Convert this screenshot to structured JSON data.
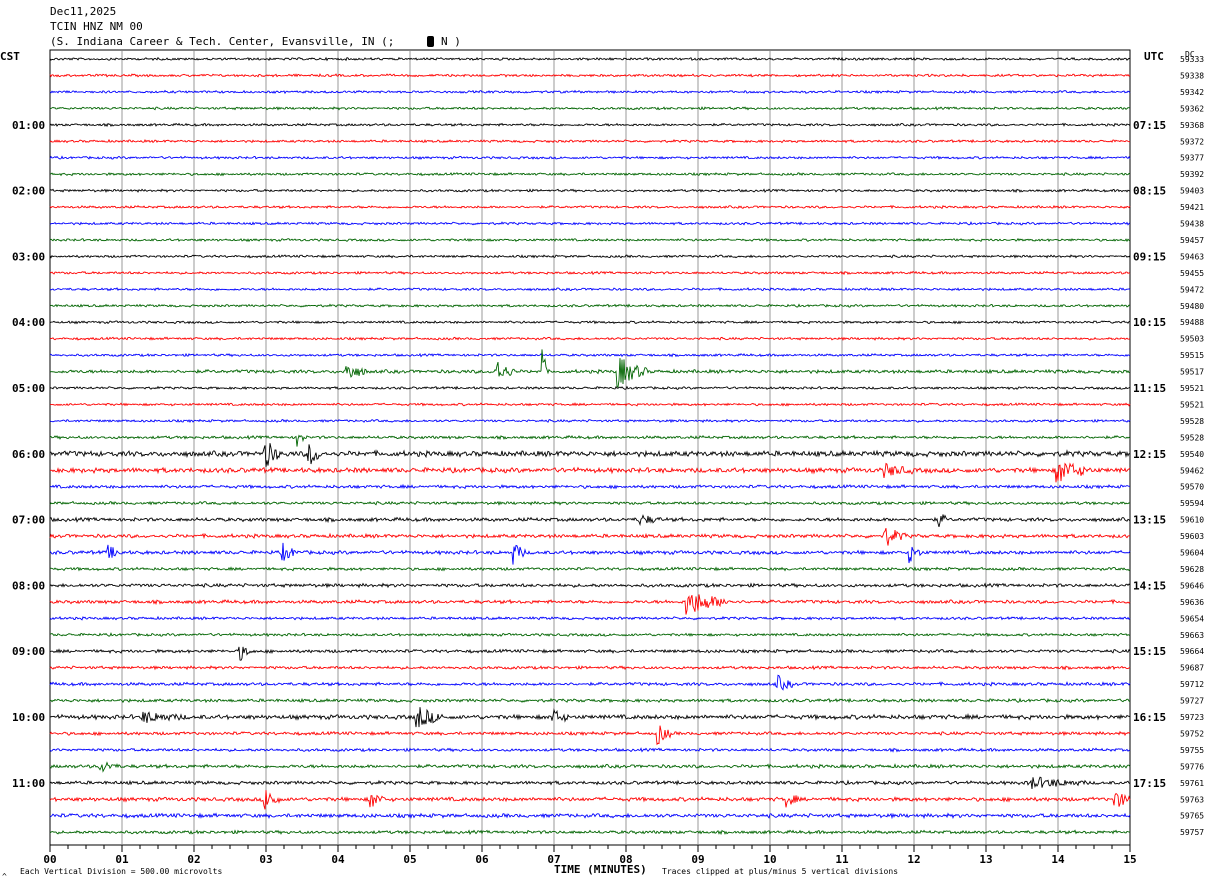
{
  "header": {
    "date": "Dec11,2025",
    "station": "TCIN HNZ NM 00",
    "location_prefix": "(S. Indiana Career & Tech. Center, Evansville, IN (;",
    "location_suffix": "N  )"
  },
  "labels": {
    "left_timezone": "CST",
    "right_timezone": "UTC",
    "dc_label": "DC",
    "x_axis_title": "TIME (MINUTES)",
    "scale_note": "Each Vertical Division =  500.00 microvolts",
    "clip_note": "Traces clipped at plus/minus 5 vertical divisions",
    "corner_mark": "^"
  },
  "colors": {
    "trace_cycle": [
      "#000000",
      "#ff0000",
      "#0000ff",
      "#006400"
    ],
    "grid": "#808080"
  },
  "chart_data": {
    "type": "line",
    "x_range": [
      0,
      15
    ],
    "x_tick_labels": [
      "00",
      "01",
      "02",
      "03",
      "04",
      "05",
      "06",
      "07",
      "08",
      "09",
      "10",
      "11",
      "12",
      "13",
      "14",
      "15"
    ],
    "cst_hour_labels": [
      "01:00",
      "02:00",
      "03:00",
      "04:00",
      "05:00",
      "06:00",
      "07:00",
      "08:00",
      "09:00",
      "10:00",
      "11:00"
    ],
    "utc_hour_labels": [
      "07:15",
      "08:15",
      "09:15",
      "10:15",
      "11:15",
      "12:15",
      "13:15",
      "14:15",
      "15:15",
      "16:15",
      "17:15"
    ],
    "hour_label_rows": [
      4,
      8,
      12,
      16,
      20,
      24,
      28,
      32,
      36,
      40,
      44
    ],
    "trace_count": 48,
    "dc_offsets": [
      "59333",
      "59338",
      "59342",
      "59362",
      "59368",
      "59372",
      "59377",
      "59392",
      "59403",
      "59421",
      "59438",
      "59457",
      "59463",
      "59455",
      "59472",
      "59480",
      "59488",
      "59503",
      "59515",
      "59517",
      "59521",
      "59521",
      "59528",
      "59528",
      "59540",
      "59462",
      "59570",
      "59594",
      "59610",
      "59603",
      "59604",
      "59628",
      "59646",
      "59636",
      "59654",
      "59663",
      "59664",
      "59687",
      "59712",
      "59727",
      "59723",
      "59752",
      "59755",
      "59776",
      "59761",
      "59763",
      "59765",
      "59757"
    ],
    "noise_levels": [
      1,
      1,
      1,
      1,
      1,
      1,
      1,
      1,
      1,
      1,
      1,
      1,
      1,
      1,
      1,
      1,
      1,
      1,
      1,
      1.4,
      1,
      1,
      1,
      1.2,
      2.2,
      2,
      1.3,
      1.2,
      1.5,
      1.5,
      1.5,
      1.2,
      1.4,
      1.4,
      1.1,
      1.1,
      1.3,
      1.2,
      1.3,
      1.3,
      1.8,
      1.3,
      1.2,
      1.4,
      1.4,
      1.6,
      1.6,
      1.3
    ],
    "events": [
      {
        "trace": 19,
        "minute": 4.1,
        "amplitude": 10,
        "duration": 0.3
      },
      {
        "trace": 19,
        "minute": 6.2,
        "amplitude": 12,
        "duration": 0.25
      },
      {
        "trace": 19,
        "minute": 6.85,
        "amplitude": 30,
        "duration": 0.05
      },
      {
        "trace": 19,
        "minute": 7.9,
        "amplitude": 16,
        "duration": 0.4
      },
      {
        "trace": 23,
        "minute": 3.45,
        "amplitude": 10,
        "duration": 0.1
      },
      {
        "trace": 24,
        "minute": 3.0,
        "amplitude": 14,
        "duration": 0.2
      },
      {
        "trace": 24,
        "minute": 3.6,
        "amplitude": 12,
        "duration": 0.2
      },
      {
        "trace": 25,
        "minute": 11.6,
        "amplitude": 6,
        "duration": 0.4
      },
      {
        "trace": 25,
        "minute": 14.0,
        "amplitude": 12,
        "duration": 0.45
      },
      {
        "trace": 28,
        "minute": 12.35,
        "amplitude": 8,
        "duration": 0.1
      },
      {
        "trace": 28,
        "minute": 8.2,
        "amplitude": 5,
        "duration": 0.3
      },
      {
        "trace": 29,
        "minute": 11.6,
        "amplitude": 10,
        "duration": 0.3
      },
      {
        "trace": 30,
        "minute": 0.8,
        "amplitude": 7,
        "duration": 0.2
      },
      {
        "trace": 30,
        "minute": 3.25,
        "amplitude": 8,
        "duration": 0.2
      },
      {
        "trace": 30,
        "minute": 6.45,
        "amplitude": 11,
        "duration": 0.15
      },
      {
        "trace": 30,
        "minute": 11.95,
        "amplitude": 9,
        "duration": 0.15
      },
      {
        "trace": 33,
        "minute": 8.85,
        "amplitude": 14,
        "duration": 0.6
      },
      {
        "trace": 36,
        "minute": 2.65,
        "amplitude": 8,
        "duration": 0.15
      },
      {
        "trace": 38,
        "minute": 10.1,
        "amplitude": 8,
        "duration": 0.25
      },
      {
        "trace": 40,
        "minute": 5.1,
        "amplitude": 12,
        "duration": 0.35
      },
      {
        "trace": 40,
        "minute": 7.0,
        "amplitude": 7,
        "duration": 0.2
      },
      {
        "trace": 40,
        "minute": 1.3,
        "amplitude": 5,
        "duration": 0.6
      },
      {
        "trace": 41,
        "minute": 8.45,
        "amplitude": 10,
        "duration": 0.2
      },
      {
        "trace": 43,
        "minute": 0.7,
        "amplitude": 6,
        "duration": 0.25
      },
      {
        "trace": 44,
        "minute": 13.6,
        "amplitude": 6,
        "duration": 0.8
      },
      {
        "trace": 45,
        "minute": 3.0,
        "amplitude": 12,
        "duration": 0.2
      },
      {
        "trace": 45,
        "minute": 4.45,
        "amplitude": 9,
        "duration": 0.2
      },
      {
        "trace": 45,
        "minute": 10.25,
        "amplitude": 7,
        "duration": 0.15
      },
      {
        "trace": 45,
        "minute": 14.8,
        "amplitude": 8,
        "duration": 0.3
      }
    ]
  }
}
